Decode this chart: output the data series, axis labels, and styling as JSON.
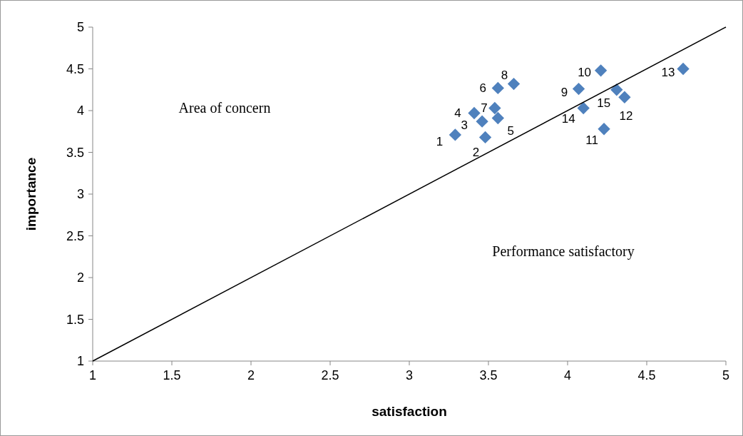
{
  "chart_data": {
    "type": "scatter",
    "xlabel": "satisfaction",
    "ylabel": "importance",
    "xlim": [
      1,
      5
    ],
    "ylim": [
      1,
      5
    ],
    "xticks": [
      1,
      1.5,
      2,
      2.5,
      3,
      3.5,
      4,
      4.5,
      5
    ],
    "yticks": [
      1,
      1.5,
      2,
      2.5,
      3,
      3.5,
      4,
      4.5,
      5
    ],
    "grid": false,
    "marker": "diamond",
    "annotations": [
      "Area of concern",
      "Performance satisfactory",
      {
        "text": "1",
        "x": 3.29,
        "y": 3.71
      },
      {
        "text": "2",
        "x": 3.48,
        "y": 3.68
      },
      {
        "text": "3",
        "x": 3.46,
        "y": 3.87
      },
      {
        "text": "4",
        "x": 3.41,
        "y": 3.97
      },
      {
        "text": "5",
        "x": 3.56,
        "y": 3.91
      },
      {
        "text": "6",
        "x": 3.56,
        "y": 4.27
      },
      {
        "text": "7",
        "x": 3.54,
        "y": 4.03
      },
      {
        "text": "8",
        "x": 3.66,
        "y": 4.32
      },
      {
        "text": "9",
        "x": 4.07,
        "y": 4.26
      },
      {
        "text": "10",
        "x": 4.21,
        "y": 4.48
      },
      {
        "text": "11",
        "x": 4.23,
        "y": 3.78
      },
      {
        "text": "12",
        "x": 4.36,
        "y": 4.16
      },
      {
        "text": "13",
        "x": 4.73,
        "y": 4.5
      },
      {
        "text": "14",
        "x": 4.1,
        "y": 4.03
      },
      {
        "text": "15",
        "x": 4.31,
        "y": 4.25
      }
    ],
    "series": [
      {
        "color": "#4f81bd",
        "x": [
          3.29,
          3.48,
          3.46,
          3.41,
          3.56,
          3.56,
          3.54,
          3.66,
          4.07,
          4.21,
          4.23,
          4.36,
          4.73,
          4.1,
          4.31
        ],
        "values": [
          3.71,
          3.68,
          3.87,
          3.97,
          3.91,
          4.27,
          4.03,
          4.32,
          4.26,
          4.48,
          3.78,
          4.16,
          4.5,
          4.03,
          4.25
        ]
      },
      {
        "type": "line",
        "color": "#000000",
        "x": [
          1,
          5
        ],
        "values": [
          1,
          5
        ],
        "marker": "none"
      }
    ]
  }
}
